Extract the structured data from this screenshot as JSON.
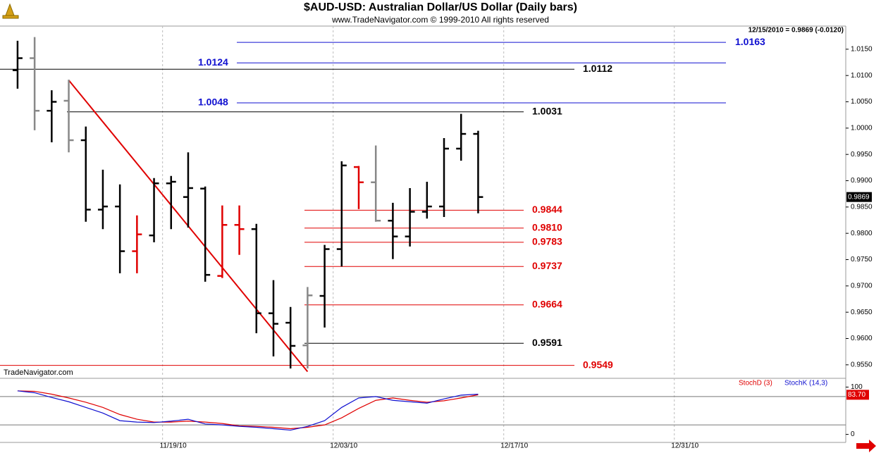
{
  "chart_data": [
    {
      "type": "ohlc",
      "title": "$AUD-USD:  Australian Dollar/US Dollar  (Daily bars)",
      "subtitle": "www.TradeNavigator.com © 1999-2010 All rights reserved",
      "info": "12/15/2010 = 0.9869 (-0.0120)",
      "watermark": "TradeNavigator.com",
      "x": [
        0,
        1,
        2,
        3,
        4,
        5,
        6,
        7,
        8,
        9,
        10,
        11,
        12,
        13,
        14,
        15,
        16,
        17,
        18,
        19,
        20,
        21,
        22,
        23,
        24,
        25,
        26,
        27
      ],
      "open": [
        1.011,
        1.0133,
        1.0033,
        1.0052,
        0.9977,
        0.9845,
        0.9851,
        0.9766,
        0.9796,
        0.9895,
        0.9869,
        0.9885,
        0.9719,
        0.9816,
        0.9808,
        0.9648,
        0.963,
        0.9587,
        0.9681,
        0.977,
        0.9926,
        0.9897,
        0.9824,
        0.9794,
        0.9841,
        0.9851,
        0.9961,
        0.9989
      ],
      "high": [
        1.0166,
        1.0173,
        1.0072,
        1.0092,
        1.0003,
        0.9921,
        0.9893,
        0.9834,
        0.9905,
        0.9909,
        0.9954,
        0.9889,
        0.9853,
        0.9853,
        0.9818,
        0.9711,
        0.966,
        0.9698,
        0.9778,
        0.9937,
        0.9928,
        0.9967,
        0.9858,
        0.9886,
        0.9898,
        0.9981,
        1.0027,
        0.9995
      ],
      "low": [
        1.0075,
        0.9996,
        0.9973,
        0.9954,
        0.9822,
        0.9808,
        0.9724,
        0.9724,
        0.9783,
        0.9808,
        0.9811,
        0.9708,
        0.9715,
        0.9759,
        0.961,
        0.9566,
        0.9543,
        0.9543,
        0.9621,
        0.9737,
        0.9846,
        0.9822,
        0.9751,
        0.9775,
        0.9828,
        0.9831,
        0.9938,
        0.9838
      ],
      "close": [
        1.0133,
        1.0033,
        1.005,
        0.9977,
        0.9845,
        0.9851,
        0.9766,
        0.9798,
        0.9895,
        0.9898,
        0.9886,
        0.9721,
        0.9816,
        0.9808,
        0.9648,
        0.9628,
        0.9586,
        0.9682,
        0.977,
        0.9929,
        0.9897,
        0.9824,
        0.9794,
        0.9841,
        0.9851,
        0.9961,
        0.9989,
        0.9869
      ],
      "colors": [
        "#000",
        "#888",
        "#000",
        "#888",
        "#000",
        "#000",
        "#000",
        "#e00000",
        "#000",
        "#000",
        "#000",
        "#000",
        "#e00000",
        "#e00000",
        "#000",
        "#000",
        "#000",
        "#888",
        "#000",
        "#000",
        "#e00000",
        "#888",
        "#000",
        "#000",
        "#000",
        "#000",
        "#000",
        "#000"
      ],
      "last_price": 0.9869,
      "levels": [
        {
          "value": 1.0163,
          "label": "1.0163",
          "color": "#1010d0"
        },
        {
          "value": 1.0124,
          "label": "1.0124",
          "color": "#1010d0"
        },
        {
          "value": 1.0112,
          "label": "1.0112",
          "color": "#000000"
        },
        {
          "value": 1.0048,
          "label": "1.0048",
          "color": "#1010d0"
        },
        {
          "value": 1.0031,
          "label": "1.0031",
          "color": "#000000"
        },
        {
          "value": 0.9844,
          "label": "0.9844",
          "color": "#e00000"
        },
        {
          "value": 0.981,
          "label": "0.9810",
          "color": "#e00000"
        },
        {
          "value": 0.9783,
          "label": "0.9783",
          "color": "#e00000"
        },
        {
          "value": 0.9737,
          "label": "0.9737",
          "color": "#e00000"
        },
        {
          "value": 0.9664,
          "label": "0.9664",
          "color": "#e00000"
        },
        {
          "value": 0.9591,
          "label": "0.9591",
          "color": "#000000"
        },
        {
          "value": 0.9549,
          "label": "0.9549",
          "color": "#e00000"
        }
      ],
      "trendline": {
        "x": [
          3,
          17
        ],
        "y": [
          1.0091,
          0.9537
        ],
        "color": "#e00000"
      },
      "xlim": [
        -1.03,
        48.55
      ],
      "xticks": [
        {
          "value": 8.5,
          "label": "11/19/10"
        },
        {
          "value": 18.5,
          "label": "12/03/10"
        },
        {
          "value": 28.5,
          "label": "12/17/10"
        },
        {
          "value": 38.5,
          "label": "12/31/10"
        }
      ],
      "xgrid": true,
      "ylim": [
        0.9527,
        1.0194
      ],
      "yticks": [
        {
          "value": 0.955,
          "label": "0.9550"
        },
        {
          "value": 0.96,
          "label": "0.9600"
        },
        {
          "value": 0.965,
          "label": "0.9650"
        },
        {
          "value": 0.97,
          "label": "0.9700"
        },
        {
          "value": 0.975,
          "label": "0.9750"
        },
        {
          "value": 0.98,
          "label": "0.9800"
        },
        {
          "value": 0.985,
          "label": "0.9850"
        },
        {
          "value": 0.99,
          "label": "0.9900"
        },
        {
          "value": 0.995,
          "label": "0.9950"
        },
        {
          "value": 1.0,
          "label": "1.0000"
        },
        {
          "value": 1.005,
          "label": "1.0050"
        },
        {
          "value": 1.01,
          "label": "1.0100"
        },
        {
          "value": 1.015,
          "label": "1.0150"
        }
      ]
    },
    {
      "type": "line",
      "series": [
        {
          "name": "StochD (3)",
          "color": "#e00000",
          "values": [
            92,
            91,
            85,
            77,
            68,
            57,
            42,
            32,
            26,
            26,
            28,
            26,
            23,
            18,
            17,
            15,
            12,
            15,
            20,
            35,
            55,
            72,
            77,
            72,
            68,
            71,
            77,
            83.7
          ],
          "value_labels": [
            null,
            null,
            null,
            null,
            null,
            null,
            null,
            null,
            null,
            null,
            null,
            null,
            null,
            null,
            null,
            null,
            null,
            null,
            null,
            null,
            null,
            null,
            null,
            null,
            null,
            null,
            null,
            "83.70"
          ]
        },
        {
          "name": "StochK (14,3)",
          "color": "#1010d0",
          "values": [
            92,
            88,
            78,
            69,
            57,
            45,
            29,
            26,
            25,
            28,
            32,
            22,
            20,
            17,
            15,
            12,
            9,
            17,
            29,
            57,
            77,
            80,
            72,
            69,
            66,
            75,
            83,
            85
          ]
        }
      ],
      "hlines": [
        80,
        20
      ],
      "ylim": [
        -17,
        118.5
      ],
      "yticks": [
        0,
        100
      ]
    }
  ]
}
